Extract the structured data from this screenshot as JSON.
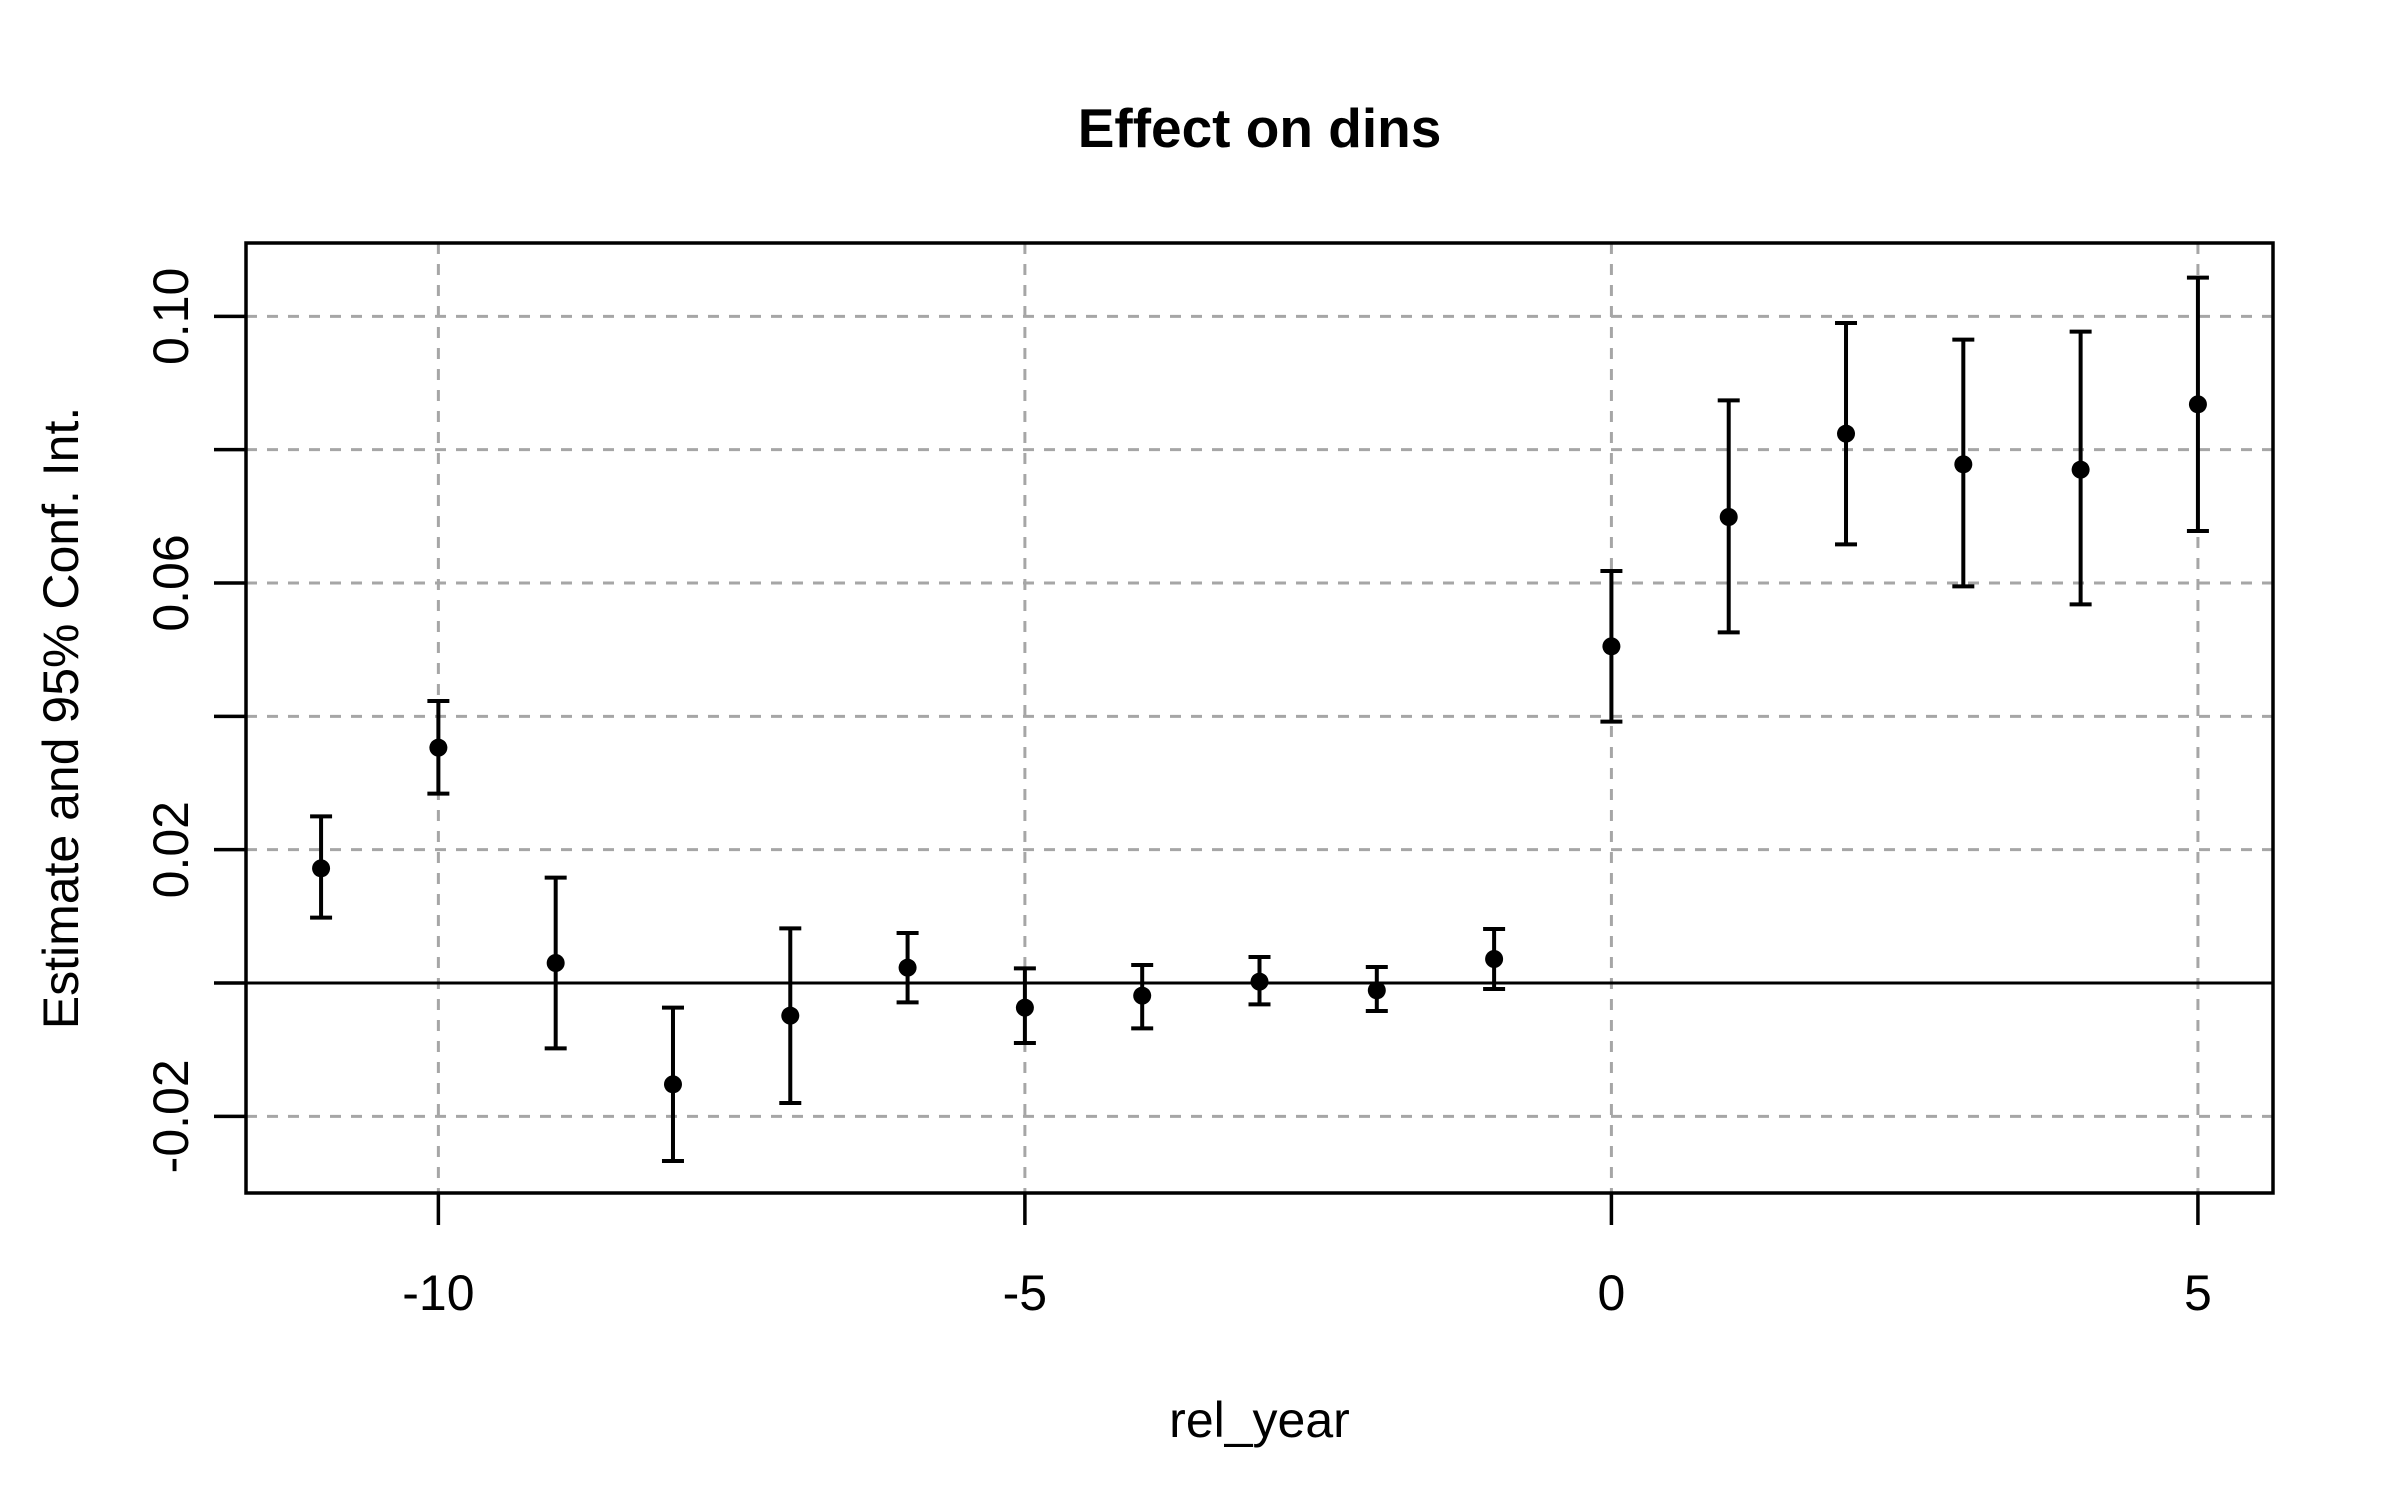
{
  "chart_data": {
    "type": "scatter",
    "subtype": "error-bar-event-study",
    "title": "Effect on dins",
    "xlabel": "rel_year",
    "ylabel": "Estimate and 95% Conf. Int.",
    "x": [
      -11,
      -10,
      -9,
      -8,
      -7,
      -6,
      -5,
      -4,
      -3,
      -2,
      -1,
      0,
      1,
      2,
      3,
      4,
      5
    ],
    "series": [
      {
        "name": "estimate",
        "values": [
          0.0172,
          0.0353,
          0.003,
          -0.0152,
          -0.0049,
          0.0023,
          -0.0037,
          -0.0019,
          0.0002,
          -0.0011,
          0.0036,
          0.0505,
          0.0699,
          0.0824,
          0.0778,
          0.077,
          0.0868
        ]
      },
      {
        "name": "ci_lower",
        "values": [
          0.0098,
          0.0284,
          -0.0098,
          -0.0267,
          -0.018,
          -0.0029,
          -0.009,
          -0.0068,
          -0.0032,
          -0.0042,
          -0.0009,
          0.0392,
          0.0526,
          0.0658,
          0.0595,
          0.0568,
          0.0678
        ]
      },
      {
        "name": "ci_upper",
        "values": [
          0.025,
          0.0423,
          0.0158,
          -0.0037,
          0.0082,
          0.0075,
          0.0022,
          0.0027,
          0.0039,
          0.0024,
          0.0081,
          0.0618,
          0.0874,
          0.099,
          0.0965,
          0.0977,
          0.1058
        ]
      }
    ],
    "xlim": [
      -11.64,
      5.64
    ],
    "ylim": [
      -0.0315,
      0.111
    ],
    "x_ticks": [
      -10,
      -5,
      0,
      5
    ],
    "x_tick_labels": [
      "-10",
      "-5",
      "0",
      "5"
    ],
    "y_ticks": [
      -0.02,
      0,
      0.02,
      0.04,
      0.06,
      0.08,
      0.1
    ],
    "y_tick_labels": [
      "-0.02",
      "",
      "0.02",
      "",
      "0.06",
      "",
      "0.10"
    ],
    "grid": true,
    "legend": "none",
    "zero_reference_line": 0,
    "colors": {
      "point": "#000000",
      "error_bar": "#000000",
      "grid": "#a6a6a6",
      "frame": "#000000",
      "background": "#ffffff"
    }
  }
}
